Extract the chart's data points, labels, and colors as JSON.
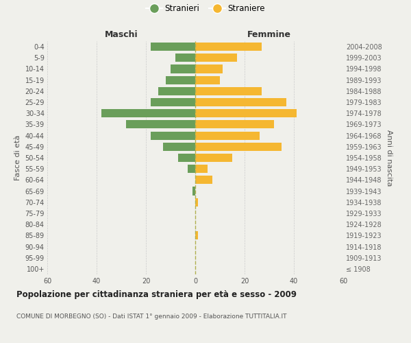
{
  "age_groups": [
    "100+",
    "95-99",
    "90-94",
    "85-89",
    "80-84",
    "75-79",
    "70-74",
    "65-69",
    "60-64",
    "55-59",
    "50-54",
    "45-49",
    "40-44",
    "35-39",
    "30-34",
    "25-29",
    "20-24",
    "15-19",
    "10-14",
    "5-9",
    "0-4"
  ],
  "birth_years": [
    "≤ 1908",
    "1909-1913",
    "1914-1918",
    "1919-1923",
    "1924-1928",
    "1929-1933",
    "1934-1938",
    "1939-1943",
    "1944-1948",
    "1949-1953",
    "1954-1958",
    "1959-1963",
    "1964-1968",
    "1969-1973",
    "1974-1978",
    "1979-1983",
    "1984-1988",
    "1989-1993",
    "1994-1998",
    "1999-2003",
    "2004-2008"
  ],
  "maschi": [
    0,
    0,
    0,
    0,
    0,
    0,
    0,
    1,
    0,
    3,
    7,
    13,
    18,
    28,
    38,
    18,
    15,
    12,
    10,
    8,
    18
  ],
  "femmine": [
    0,
    0,
    0,
    1,
    0,
    0,
    1,
    0,
    7,
    5,
    15,
    35,
    26,
    32,
    41,
    37,
    27,
    10,
    11,
    17,
    27
  ],
  "male_color": "#6a9e5a",
  "female_color": "#f5b731",
  "background_color": "#f0f0eb",
  "grid_color": "#cccccc",
  "bar_height": 0.75,
  "xlim": 60,
  "title": "Popolazione per cittadinanza straniera per età e sesso - 2009",
  "subtitle": "COMUNE DI MORBEGNO (SO) - Dati ISTAT 1° gennaio 2009 - Elaborazione TUTTITALIA.IT",
  "ylabel_left": "Fasce di età",
  "ylabel_right": "Anni di nascita",
  "maschi_label": "Maschi",
  "femmine_label": "Femmine",
  "legend_stranieri": "Stranieri",
  "legend_straniere": "Straniere",
  "dashed_line_color": "#b0b050"
}
